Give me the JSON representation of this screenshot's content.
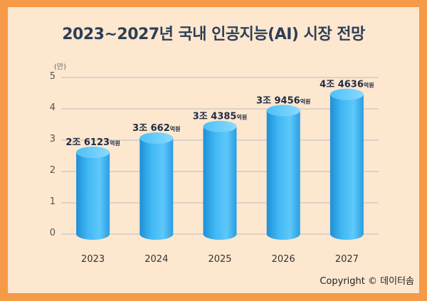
{
  "title": "2023~2027년 국내 인공지능(AI) 시장 전망",
  "unit_label": "(만)",
  "copyright": "Copyright © 데이터솜",
  "colors": {
    "frame": "#f59a46",
    "background": "#fde7cf",
    "bar": "#3db4f2",
    "grid": "#bcbcbc"
  },
  "chart_data": {
    "type": "bar",
    "categories": [
      "2023",
      "2024",
      "2025",
      "2026",
      "2027"
    ],
    "values": [
      2.6123,
      3.0662,
      3.4385,
      3.9456,
      4.4636
    ],
    "value_labels": [
      {
        "main": "2조 6123",
        "unit": "억원"
      },
      {
        "main": "3조 662",
        "unit": "억원"
      },
      {
        "main": "3조 4385",
        "unit": "억원"
      },
      {
        "main": "3조 9456",
        "unit": "억원"
      },
      {
        "main": "4조 4636",
        "unit": "억원"
      }
    ],
    "yticks": [
      0,
      1,
      2,
      3,
      4,
      5
    ],
    "ylim": [
      0,
      5
    ],
    "grid": true
  }
}
